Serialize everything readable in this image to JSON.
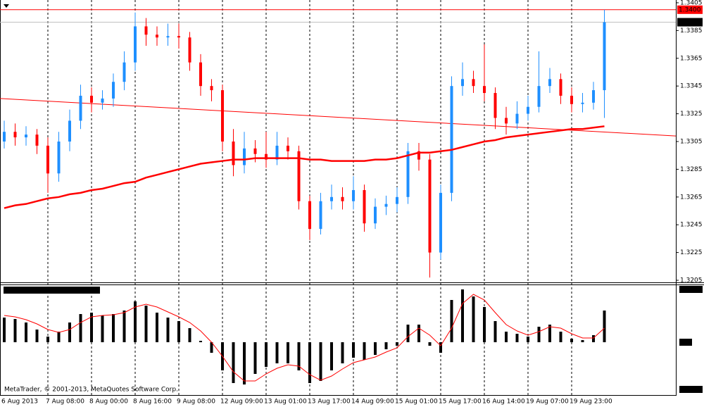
{
  "chart_data": [
    {
      "type": "candlestick",
      "categories": [
        "6 Aug 2013",
        null,
        null,
        null,
        "7 Aug 08:00",
        null,
        null,
        null,
        "8 Aug 00:00",
        null,
        null,
        null,
        "8 Aug 16:00",
        null,
        null,
        null,
        "9 Aug 08:00",
        null,
        null,
        null,
        "12 Aug 09:00",
        null,
        null,
        null,
        "13 Aug 01:00",
        null,
        null,
        null,
        "13 Aug 17:00",
        null,
        null,
        null,
        "14 Aug 09:00",
        null,
        null,
        null,
        "15 Aug 01:00",
        null,
        null,
        null,
        "15 Aug 17:00",
        null,
        null,
        null,
        "16 Aug 14:00",
        null,
        null,
        null,
        "19 Aug 07:00",
        null,
        null,
        null,
        "19 Aug 23:00",
        null,
        null,
        null
      ],
      "open": [
        1.3305,
        1.3312,
        1.3308,
        1.331,
        1.3302,
        1.3282,
        1.3305,
        1.332,
        1.3338,
        1.3333,
        1.3336,
        1.3348,
        1.3362,
        1.3388,
        1.3382,
        1.338,
        1.3381,
        1.338,
        1.3362,
        1.3345,
        1.3342,
        1.3305,
        1.3288,
        1.33,
        1.3296,
        1.3292,
        1.3302,
        1.3298,
        1.3262,
        1.3242,
        1.3262,
        1.3265,
        1.3262,
        1.327,
        1.3246,
        1.3258,
        1.326,
        1.3265,
        1.3298,
        1.3292,
        1.3225,
        1.3268,
        1.3345,
        1.335,
        1.3345,
        1.334,
        1.3322,
        1.3318,
        1.3325,
        1.333,
        1.3345,
        1.335,
        1.3338,
        1.3332,
        1.3333,
        1.3342
      ],
      "high": [
        1.332,
        1.3318,
        1.3316,
        1.3314,
        1.3308,
        1.3312,
        1.3328,
        1.3346,
        1.3344,
        1.3342,
        1.3354,
        1.337,
        1.3398,
        1.3394,
        1.3388,
        1.339,
        1.339,
        1.3384,
        1.3368,
        1.335,
        1.3346,
        1.3314,
        1.3312,
        1.3306,
        1.3312,
        1.3312,
        1.3308,
        1.3302,
        1.3266,
        1.3268,
        1.3274,
        1.3272,
        1.328,
        1.3274,
        1.3264,
        1.3266,
        1.3272,
        1.3304,
        1.3304,
        1.3296,
        1.3274,
        1.3352,
        1.3362,
        1.3356,
        1.3375,
        1.3344,
        1.333,
        1.3334,
        1.3338,
        1.337,
        1.3358,
        1.3354,
        1.3344,
        1.334,
        1.3348,
        1.34
      ],
      "low": [
        1.33,
        1.3302,
        1.3302,
        1.3296,
        1.3268,
        1.3276,
        1.3298,
        1.3314,
        1.3326,
        1.3328,
        1.333,
        1.3342,
        1.3356,
        1.3374,
        1.3374,
        1.3374,
        1.3372,
        1.3356,
        1.3338,
        1.3334,
        1.3298,
        1.328,
        1.3282,
        1.329,
        1.3286,
        1.3288,
        1.3292,
        1.3256,
        1.3234,
        1.3238,
        1.3256,
        1.3256,
        1.3256,
        1.324,
        1.3242,
        1.3252,
        1.3254,
        1.326,
        1.3284,
        1.3207,
        1.322,
        1.3262,
        1.3338,
        1.334,
        1.3334,
        1.3314,
        1.331,
        1.3314,
        1.332,
        1.3326,
        1.334,
        1.3332,
        1.3326,
        1.3326,
        1.3328,
        1.3322
      ],
      "close": [
        1.3312,
        1.3308,
        1.331,
        1.3302,
        1.3282,
        1.3305,
        1.332,
        1.3338,
        1.3333,
        1.3336,
        1.3348,
        1.3362,
        1.3388,
        1.3382,
        1.338,
        1.3381,
        1.338,
        1.3362,
        1.3345,
        1.3342,
        1.3305,
        1.3288,
        1.33,
        1.3296,
        1.3292,
        1.3302,
        1.3298,
        1.3262,
        1.3242,
        1.3262,
        1.3265,
        1.3262,
        1.327,
        1.3246,
        1.3258,
        1.326,
        1.3265,
        1.3298,
        1.3292,
        1.3225,
        1.3268,
        1.3345,
        1.335,
        1.3345,
        1.334,
        1.3322,
        1.3318,
        1.3325,
        1.333,
        1.3345,
        1.335,
        1.3338,
        1.3332,
        1.3333,
        1.3342,
        1.3391
      ],
      "up_color": "#1e8fff",
      "down_color": "#ff0000",
      "ylim": [
        1.3204,
        1.3407
      ],
      "yticks": [
        1.3405,
        1.3385,
        1.3365,
        1.3345,
        1.3325,
        1.3305,
        1.3285,
        1.3265,
        1.3245,
        1.3225,
        1.3205
      ],
      "grid": "vertical",
      "moving_average": {
        "color": "#ff0000",
        "values": [
          1.3257,
          1.3259,
          1.326,
          1.3262,
          1.3264,
          1.3265,
          1.3267,
          1.3268,
          1.327,
          1.3271,
          1.3273,
          1.3275,
          1.3276,
          1.3279,
          1.3281,
          1.3283,
          1.3285,
          1.3287,
          1.3289,
          1.329,
          1.3291,
          1.3292,
          1.3292,
          1.3293,
          1.3293,
          1.3293,
          1.3293,
          1.3293,
          1.3292,
          1.3292,
          1.3291,
          1.3291,
          1.3291,
          1.3291,
          1.3292,
          1.3292,
          1.3293,
          1.3295,
          1.3297,
          1.3297,
          1.3298,
          1.3299,
          1.3301,
          1.3303,
          1.3305,
          1.3306,
          1.3308,
          1.3309,
          1.331,
          1.3311,
          1.3312,
          1.3313,
          1.3314,
          1.3314,
          1.3315,
          1.3316
        ]
      },
      "trend_line": {
        "color": "#ff0000",
        "values": [
          1.3336,
          1.3309
        ]
      },
      "levels": [
        {
          "value": 1.34,
          "label": "1.3400",
          "color": "#ff0000",
          "box_color": "#ff0000"
        },
        {
          "value": 1.3391,
          "label": "1.3391",
          "color": "#c0c0c0",
          "box_color": "#000000"
        }
      ]
    },
    {
      "type": "bar",
      "values": [
        35,
        33,
        28,
        18,
        8,
        15,
        28,
        40,
        42,
        38,
        40,
        45,
        58,
        52,
        42,
        35,
        30,
        20,
        2,
        -15,
        -40,
        -58,
        -60,
        -45,
        -35,
        -30,
        -30,
        -40,
        -58,
        -55,
        -40,
        -30,
        -22,
        -25,
        -18,
        -10,
        -5,
        25,
        25,
        -5,
        -15,
        60,
        75,
        65,
        50,
        30,
        15,
        12,
        8,
        22,
        25,
        15,
        5,
        3,
        10,
        45
      ],
      "color": "#000000",
      "signal": {
        "color": "#ff0000",
        "values": [
          38,
          36,
          32,
          26,
          18,
          14,
          18,
          28,
          36,
          38,
          39,
          42,
          50,
          54,
          50,
          43,
          36,
          28,
          16,
          0,
          -20,
          -42,
          -55,
          -55,
          -45,
          -37,
          -32,
          -34,
          -46,
          -54,
          -48,
          -38,
          -29,
          -25,
          -21,
          -14,
          -8,
          8,
          20,
          10,
          -5,
          20,
          55,
          68,
          60,
          42,
          25,
          16,
          10,
          15,
          22,
          20,
          12,
          6,
          6,
          20
        ]
      },
      "ylim": [
        -74,
        81
      ],
      "copyright": "MetaTrader, © 2001-2013, MetaQuotes Software Corp."
    }
  ]
}
